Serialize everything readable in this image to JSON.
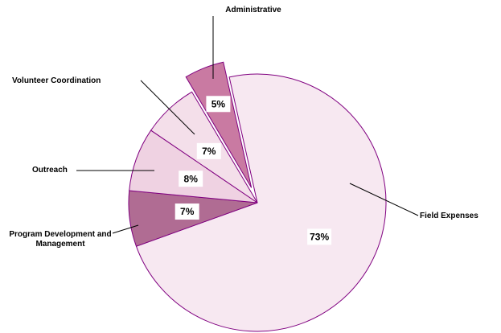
{
  "chart_data": {
    "type": "pie",
    "categories": [
      "Field Expenses",
      "Program Development and Management",
      "Outreach",
      "Volunteer Coordination",
      "Administrative"
    ],
    "values": [
      73,
      7,
      8,
      7,
      5
    ],
    "value_labels": [
      "73%",
      "7%",
      "8%",
      "7%",
      "5%"
    ],
    "colors": [
      "#f7e8f1",
      "#b06c93",
      "#efd2e2",
      "#f4dfea",
      "#c97aa2"
    ],
    "exploded": [
      "Administrative"
    ]
  }
}
